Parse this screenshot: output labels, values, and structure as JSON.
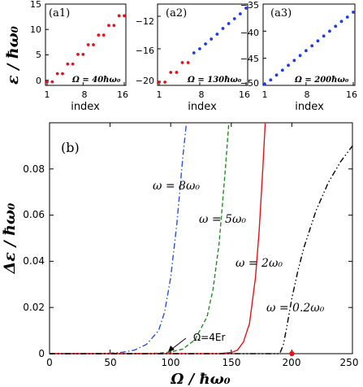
{
  "chart_data": [
    {
      "type": "scatter",
      "panel_label": "(a1)",
      "annotation": "Ω = 40ħω₀",
      "xlabel": "index",
      "ylabel": "ε / ħω₀",
      "xlim": [
        1,
        16
      ],
      "ylim": [
        -1,
        15
      ],
      "xticks": [
        "1",
        "8",
        "16"
      ],
      "yticks": [
        "0",
        "5",
        "10",
        "15"
      ],
      "color": "#e8111b",
      "series": [
        {
          "x": [
            1,
            2,
            3,
            4,
            5,
            6,
            7,
            8,
            9,
            10,
            11,
            12,
            13,
            14,
            15,
            16
          ],
          "values": [
            -0.3,
            -0.3,
            1.3,
            1.3,
            3.2,
            3.2,
            5.1,
            5.1,
            7.0,
            7.0,
            8.9,
            8.9,
            10.8,
            10.8,
            12.7,
            12.7
          ]
        }
      ]
    },
    {
      "type": "scatter",
      "panel_label": "(a2)",
      "annotation": "Ω = 130ħω₀",
      "xlabel": "index",
      "ylabel": "",
      "xlim": [
        1,
        16
      ],
      "ylim": [
        -20.5,
        -10.5
      ],
      "xticks": [
        "1",
        "8",
        "16"
      ],
      "yticks": [
        "−20",
        "−16",
        "−12"
      ],
      "series": [
        {
          "color": "#e8111b",
          "x": [
            1,
            2,
            3,
            4,
            5,
            6
          ],
          "values": [
            -20.1,
            -20.1,
            -18.9,
            -18.9,
            -17.7,
            -17.7
          ]
        },
        {
          "color": "#1a3cf0",
          "x": [
            7,
            8,
            9,
            10,
            11,
            12,
            13,
            14,
            15,
            16
          ],
          "values": [
            -16.5,
            -16.0,
            -15.4,
            -14.8,
            -14.2,
            -13.5,
            -12.9,
            -12.3,
            -11.7,
            -11.0
          ]
        }
      ]
    },
    {
      "type": "scatter",
      "panel_label": "(a3)",
      "annotation": "Ω = 200ħω₀",
      "xlabel": "index",
      "ylabel": "",
      "xlim": [
        1,
        16
      ],
      "ylim": [
        -50,
        -35
      ],
      "xticks": [
        "1",
        "8",
        "16"
      ],
      "yticks": [
        "−50",
        "−45",
        "−40",
        "−35"
      ],
      "color": "#1a3cf0",
      "series": [
        {
          "x": [
            1,
            2,
            3,
            4,
            5,
            6,
            7,
            8,
            9,
            10,
            11,
            12,
            13,
            14,
            15,
            16
          ],
          "values": [
            -49.8,
            -49.0,
            -48.1,
            -47.2,
            -46.3,
            -45.4,
            -44.5,
            -43.6,
            -42.7,
            -41.8,
            -40.9,
            -40.0,
            -39.1,
            -38.2,
            -37.4,
            -36.5
          ]
        }
      ]
    },
    {
      "type": "line",
      "panel_label": "(b)",
      "xlabel": "Ω / ħω₀",
      "ylabel": "Δε / ħω₀",
      "xlim": [
        0,
        250
      ],
      "ylim": [
        0,
        0.1
      ],
      "xticks": [
        "0",
        "50",
        "100",
        "150",
        "200",
        "250"
      ],
      "yticks": [
        "0",
        "0.02",
        "0.04",
        "0.06",
        "0.08"
      ],
      "series": [
        {
          "name": "ω = 8ω₀",
          "color": "#2850d8",
          "dash": "dashdot",
          "x": [
            0,
            40,
            50,
            60,
            70,
            80,
            90,
            95,
            100,
            105,
            110,
            113
          ],
          "values": [
            0,
            0,
            0.0002,
            0.0006,
            0.0015,
            0.004,
            0.01,
            0.018,
            0.033,
            0.056,
            0.085,
            0.1
          ]
        },
        {
          "name": "ω = 5ω₀",
          "color": "#1f8f1f",
          "dash": "dashed",
          "x": [
            0,
            80,
            90,
            100,
            110,
            120,
            130,
            135,
            140,
            145,
            148
          ],
          "values": [
            0,
            0,
            0.0002,
            0.0007,
            0.002,
            0.006,
            0.016,
            0.028,
            0.048,
            0.079,
            0.1
          ]
        },
        {
          "name": "ω = 2ω₀",
          "color": "#e8111b",
          "dash": "solid",
          "x": [
            0,
            140,
            150,
            155,
            160,
            165,
            170,
            173,
            176,
            178
          ],
          "values": [
            0,
            0,
            0.0005,
            0.0015,
            0.005,
            0.013,
            0.033,
            0.053,
            0.08,
            0.1
          ]
        },
        {
          "name": "ω = 0.2ω₀",
          "color": "#000000",
          "dash": "dashdotdot",
          "x": [
            0,
            190,
            193,
            196,
            200,
            205,
            210,
            220,
            230,
            240,
            250
          ],
          "values": [
            0,
            0,
            0.004,
            0.012,
            0.024,
            0.036,
            0.046,
            0.062,
            0.074,
            0.083,
            0.09
          ]
        }
      ],
      "marker": {
        "x": 200,
        "y": 0,
        "color": "#e8111b",
        "label": "Ω=4Er"
      }
    }
  ]
}
